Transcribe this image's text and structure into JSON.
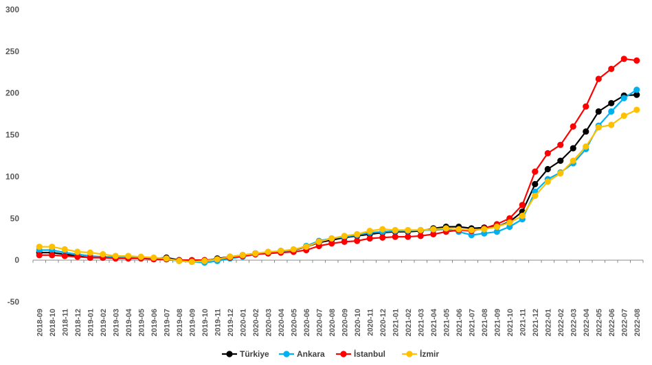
{
  "chart_data": {
    "type": "line",
    "title": "",
    "xlabel": "",
    "ylabel": "",
    "ylim": [
      -50,
      300
    ],
    "yticks": [
      -50,
      0,
      50,
      100,
      150,
      200,
      250,
      300
    ],
    "grid": false,
    "legend_position": "bottom",
    "categories": [
      "2018-09",
      "2018-10",
      "2018-11",
      "2018-12",
      "2019-01",
      "2019-02",
      "2019-03",
      "2019-04",
      "2019-05",
      "2019-06",
      "2019-07",
      "2019-08",
      "2019-09",
      "2019-10",
      "2019-11",
      "2019-12",
      "2020-01",
      "2020-02",
      "2020-03",
      "2020-04",
      "2020-05",
      "2020-06",
      "2020-07",
      "2020-08",
      "2020-09",
      "2020-10",
      "2020-11",
      "2020-12",
      "2021-01",
      "2021-02",
      "2021-03",
      "2021-04",
      "2021-05",
      "2021-06",
      "2021-07",
      "2021-08",
      "2021-09",
      "2021-10",
      "2021-11",
      "2021-12",
      "2022-01",
      "2022-02",
      "2022-03",
      "2022-04",
      "2022-05",
      "2022-06",
      "2022-07",
      "2022-08"
    ],
    "series": [
      {
        "name": "Türkiye",
        "color": "#000000",
        "values": [
          9,
          9,
          7,
          5,
          3,
          3,
          3,
          3,
          3,
          2,
          3,
          0,
          -1,
          -1,
          2,
          4,
          6,
          8,
          9,
          11,
          12,
          16,
          21,
          24,
          27,
          29,
          31,
          33,
          34,
          34,
          35,
          38,
          40,
          40,
          38,
          39,
          40,
          46,
          58,
          91,
          109,
          119,
          134,
          154,
          178,
          188,
          197,
          198
        ]
      },
      {
        "name": "Ankara",
        "color": "#00B0F0",
        "values": [
          12,
          12,
          9,
          7,
          5,
          4,
          4,
          3,
          3,
          2,
          1,
          -1,
          -2,
          -3,
          -1,
          2,
          4,
          7,
          9,
          10,
          12,
          17,
          23,
          26,
          28,
          30,
          33,
          34,
          35,
          35,
          36,
          36,
          37,
          34,
          30,
          32,
          34,
          40,
          49,
          82,
          97,
          105,
          116,
          133,
          161,
          178,
          194,
          204
        ]
      },
      {
        "name": "İstanbul",
        "color": "#FF0000",
        "values": [
          6,
          6,
          5,
          4,
          3,
          3,
          2,
          2,
          2,
          1,
          1,
          0,
          0,
          0,
          1,
          3,
          5,
          7,
          8,
          9,
          10,
          12,
          17,
          20,
          22,
          23,
          26,
          27,
          28,
          28,
          29,
          31,
          34,
          36,
          35,
          38,
          43,
          50,
          66,
          106,
          128,
          138,
          160,
          184,
          217,
          229,
          241,
          239
        ]
      },
      {
        "name": "İzmir",
        "color": "#FFC000",
        "values": [
          16,
          16,
          13,
          10,
          9,
          7,
          5,
          5,
          4,
          3,
          2,
          -1,
          -2,
          -1,
          1,
          4,
          6,
          8,
          10,
          11,
          13,
          16,
          22,
          26,
          29,
          31,
          35,
          37,
          36,
          36,
          36,
          37,
          38,
          37,
          36,
          37,
          40,
          45,
          53,
          77,
          94,
          104,
          119,
          136,
          159,
          162,
          173,
          180
        ]
      }
    ]
  }
}
